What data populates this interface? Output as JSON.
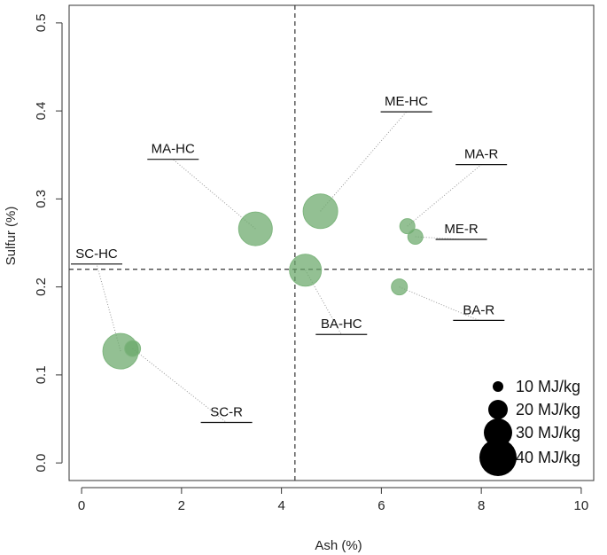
{
  "chart_data": {
    "type": "scatter",
    "xlabel": "Ash (%)",
    "ylabel": "Sulfur (%)",
    "xlim": [
      -0.25,
      10.25
    ],
    "ylim": [
      -0.02,
      0.52
    ],
    "xticks": [
      "0",
      "2",
      "4",
      "6",
      "8",
      "10"
    ],
    "xtick_values": [
      0,
      2,
      4,
      6,
      8,
      10
    ],
    "yticks": [
      "0.0",
      "0.1",
      "0.2",
      "0.3",
      "0.4",
      "0.5"
    ],
    "ytick_values": [
      0.0,
      0.1,
      0.2,
      0.3,
      0.4,
      0.5
    ],
    "reference_lines": {
      "x": 4.27,
      "y": 0.22
    },
    "point_color": "#6aa86a",
    "points": [
      {
        "name": "SC-HC",
        "x": 0.78,
        "y": 0.127,
        "energy": 38,
        "label_x": 0.3,
        "label_y": 0.226
      },
      {
        "name": "SC-R",
        "x": 1.02,
        "y": 0.13,
        "energy": 16,
        "label_x": 2.9,
        "label_y": 0.046
      },
      {
        "name": "MA-HC",
        "x": 3.48,
        "y": 0.266,
        "energy": 36,
        "label_x": 1.83,
        "label_y": 0.345
      },
      {
        "name": "BA-HC",
        "x": 4.48,
        "y": 0.219,
        "energy": 34,
        "label_x": 5.2,
        "label_y": 0.146
      },
      {
        "name": "ME-HC",
        "x": 4.78,
        "y": 0.286,
        "energy": 37,
        "label_x": 6.5,
        "label_y": 0.399
      },
      {
        "name": "MA-R",
        "x": 6.52,
        "y": 0.269,
        "energy": 15,
        "label_x": 8.0,
        "label_y": 0.339
      },
      {
        "name": "ME-R",
        "x": 6.68,
        "y": 0.257,
        "energy": 15,
        "label_x": 7.6,
        "label_y": 0.254
      },
      {
        "name": "BA-R",
        "x": 6.36,
        "y": 0.2,
        "energy": 16,
        "label_x": 7.95,
        "label_y": 0.162
      }
    ],
    "legend": {
      "position": "bottom-right",
      "entries": [
        {
          "label": "10 MJ/kg",
          "energy": 10
        },
        {
          "label": "20 MJ/kg",
          "energy": 20
        },
        {
          "label": "30 MJ/kg",
          "energy": 30
        },
        {
          "label": "40 MJ/kg",
          "energy": 40
        }
      ]
    }
  }
}
